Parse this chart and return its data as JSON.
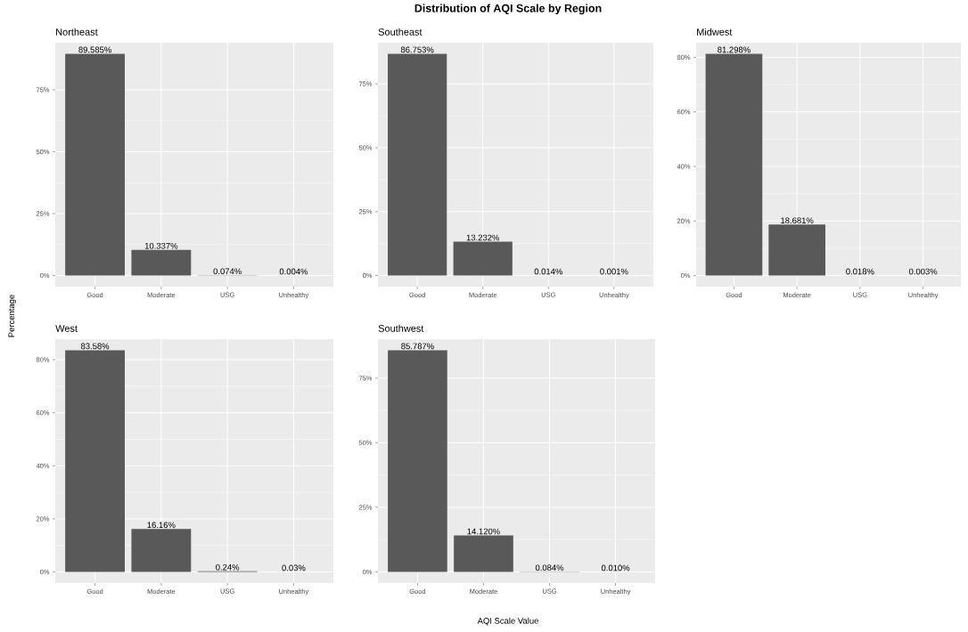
{
  "chart_data": [
    {
      "type": "bar",
      "title": "Northeast",
      "categories": [
        "Good",
        "Moderate",
        "USG",
        "Unhealthy"
      ],
      "values": [
        89.585,
        10.337,
        0.074,
        0.004
      ],
      "value_labels": [
        "89.585%",
        "10.337%",
        "0.074%",
        "0.004%"
      ],
      "color": "#595959",
      "ylim": [
        -4.48,
        94.06
      ],
      "yticks": [
        {
          "value": 0,
          "label": "0%"
        },
        {
          "value": 25,
          "label": "25%"
        },
        {
          "value": 50,
          "label": "50%"
        },
        {
          "value": 75,
          "label": "75%"
        }
      ],
      "grid": true
    },
    {
      "type": "bar",
      "title": "Southeast",
      "categories": [
        "Good",
        "Moderate",
        "USG",
        "Unhealthy"
      ],
      "values": [
        86.753,
        13.232,
        0.014,
        0.001
      ],
      "value_labels": [
        "86.753%",
        "13.232%",
        "0.014%",
        "0.001%"
      ],
      "color": "#595959",
      "ylim": [
        -4.34,
        91.09
      ],
      "yticks": [
        {
          "value": 0,
          "label": "0%"
        },
        {
          "value": 25,
          "label": "25%"
        },
        {
          "value": 50,
          "label": "50%"
        },
        {
          "value": 75,
          "label": "75%"
        }
      ],
      "grid": true
    },
    {
      "type": "bar",
      "title": "Midwest",
      "categories": [
        "Good",
        "Moderate",
        "USG",
        "Unhealthy"
      ],
      "values": [
        81.298,
        18.681,
        0.018,
        0.003
      ],
      "value_labels": [
        "81.298%",
        "18.681%",
        "0.018%",
        "0.003%"
      ],
      "color": "#595959",
      "ylim": [
        -4.06,
        85.36
      ],
      "yticks": [
        {
          "value": 0,
          "label": "0%"
        },
        {
          "value": 20,
          "label": "20%"
        },
        {
          "value": 40,
          "label": "40%"
        },
        {
          "value": 60,
          "label": "60%"
        },
        {
          "value": 80,
          "label": "80%"
        }
      ],
      "grid": true
    },
    {
      "type": "bar",
      "title": "West",
      "categories": [
        "Good",
        "Moderate",
        "USG",
        "Unhealthy"
      ],
      "values": [
        83.58,
        16.16,
        0.24,
        0.03
      ],
      "value_labels": [
        "83.58%",
        "16.16%",
        "0.24%",
        "0.03%"
      ],
      "color": "#595959",
      "ylim": [
        -4.18,
        87.76
      ],
      "yticks": [
        {
          "value": 0,
          "label": "0%"
        },
        {
          "value": 20,
          "label": "20%"
        },
        {
          "value": 40,
          "label": "40%"
        },
        {
          "value": 60,
          "label": "60%"
        },
        {
          "value": 80,
          "label": "80%"
        }
      ],
      "grid": true
    },
    {
      "type": "bar",
      "title": "Southwest",
      "categories": [
        "Good",
        "Moderate",
        "USG",
        "Unhealthy"
      ],
      "values": [
        85.787,
        14.12,
        0.084,
        0.01
      ],
      "value_labels": [
        "85.787%",
        "14.120%",
        "0.084%",
        "0.010%"
      ],
      "color": "#595959",
      "ylim": [
        -4.29,
        90.08
      ],
      "yticks": [
        {
          "value": 0,
          "label": "0%"
        },
        {
          "value": 25,
          "label": "25%"
        },
        {
          "value": 50,
          "label": "50%"
        },
        {
          "value": 75,
          "label": "75%"
        }
      ],
      "grid": true
    },
    {
      "type": "other",
      "title": "Distribution of AQI Scale by Region",
      "xlabel": "AQI Scale Value",
      "ylabel": "Percentage"
    }
  ]
}
